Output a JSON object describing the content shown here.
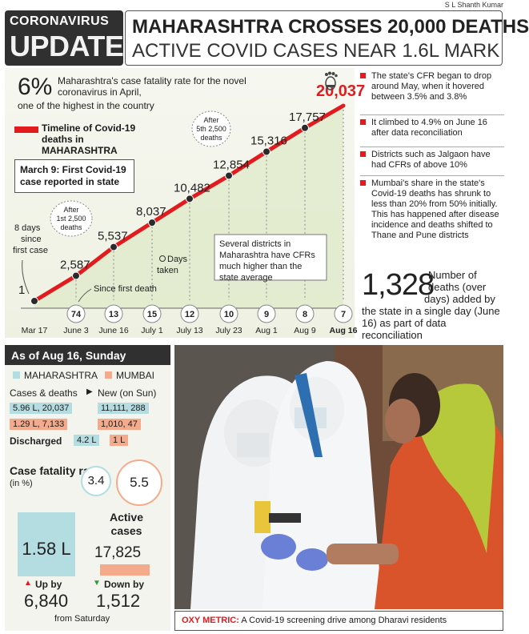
{
  "credit": "S L Shanth Kumar",
  "header": {
    "tag_line1": "CORONAVIRUS",
    "tag_line2": "UPDATE",
    "title": "MAHARASHTRA CROSSES 20,000 DEATHS",
    "subtitle": "ACTIVE COVID CASES NEAR 1.6L MARK"
  },
  "intro": {
    "cfr_value": "6%",
    "cfr_text": "Maharashtra's case fatality rate for the novel coronavirus in April,",
    "cfr_text2": "one of the highest in the country",
    "legend_label": "Timeline of Covid-19 deaths in MAHARASHTRA",
    "first_case_box": "March 9: First Covid-19 case reported in state"
  },
  "chart_data": {
    "type": "line",
    "title": "Timeline of Covid-19 deaths in MAHARASHTRA",
    "x": [
      "Mar 17",
      "June 3",
      "June 16",
      "July 1",
      "July 13",
      "July 23",
      "Aug 1",
      "Aug 9",
      "Aug 16"
    ],
    "y": [
      1,
      2587,
      5537,
      8037,
      10482,
      12854,
      15316,
      17757,
      20037
    ],
    "value_labels": [
      "1",
      "2,587",
      "5,537",
      "8,037",
      "10,482",
      "12,854",
      "15,316",
      "17,757",
      "20,037"
    ],
    "days_taken": [
      "74",
      "13",
      "15",
      "12",
      "10",
      "9",
      "8",
      "7"
    ],
    "days_taken_label": "Days taken",
    "since_first_death_label": "Since first death",
    "annotations": {
      "first_case_days": "8 days since first case",
      "after_first": "After 1st 2,500 deaths",
      "after_fifth": "After 5th 2,500 deaths",
      "districts_note": "Several districts in Maharashtra have CFRs much higher than the state average"
    },
    "colors": {
      "line": "#e21b1f",
      "fill": "#dfe9c8",
      "marker": "#2a2a2a"
    }
  },
  "side_notes": [
    "The state's CFR began to drop around May, when it hovered between 3.5% and 3.8%",
    "It climbed to 4.9% on June 16 after data reconciliation",
    "Districts such as Jalgaon have had CFRs of above 10%",
    "Mumbai's share in the state's Covid-19 deaths has shrunk to less than 20% from 50% initially. This has happened after disease incidence and deaths shifted to Thane and Pune districts"
  ],
  "reconciliation": {
    "value": "1,328",
    "text_a": "Number of deaths (over",
    "text_b": "days) added by the state in a single day (June 16) as part of data reconciliation"
  },
  "stats": {
    "heading": "As of Aug 16, Sunday",
    "legend_mh": "MAHARASHTRA",
    "legend_mum": "MUMBAI",
    "cases_label": "Cases & deaths",
    "new_label": "New (on Sun)",
    "mh_cases": "5.96 L, 20,037",
    "mh_new": "11,111, 288",
    "mum_cases": "1.29 L, 7,133",
    "mum_new": "1,010, 47",
    "discharged_label": "Discharged",
    "mh_discharged": "4.2 L",
    "mum_discharged": "1 L",
    "cfr_label": "Case fatality rate",
    "cfr_unit": "(in %)",
    "mh_cfr": "3.4",
    "mum_cfr": "5.5",
    "active_label": "Active cases",
    "mh_active": "1.58 L",
    "mum_active": "17,825",
    "mh_up_label": "Up by",
    "mh_up_value": "6,840",
    "mum_down_label": "Down by",
    "mum_down_value": "1,512",
    "from_saturday": "from Saturday",
    "colors": {
      "mh": "#b3dde0",
      "mum": "#f3ab8c"
    }
  },
  "caption": {
    "head": "OXY METRIC:",
    "text": "A Covid-19 screening drive among Dharavi residents"
  }
}
